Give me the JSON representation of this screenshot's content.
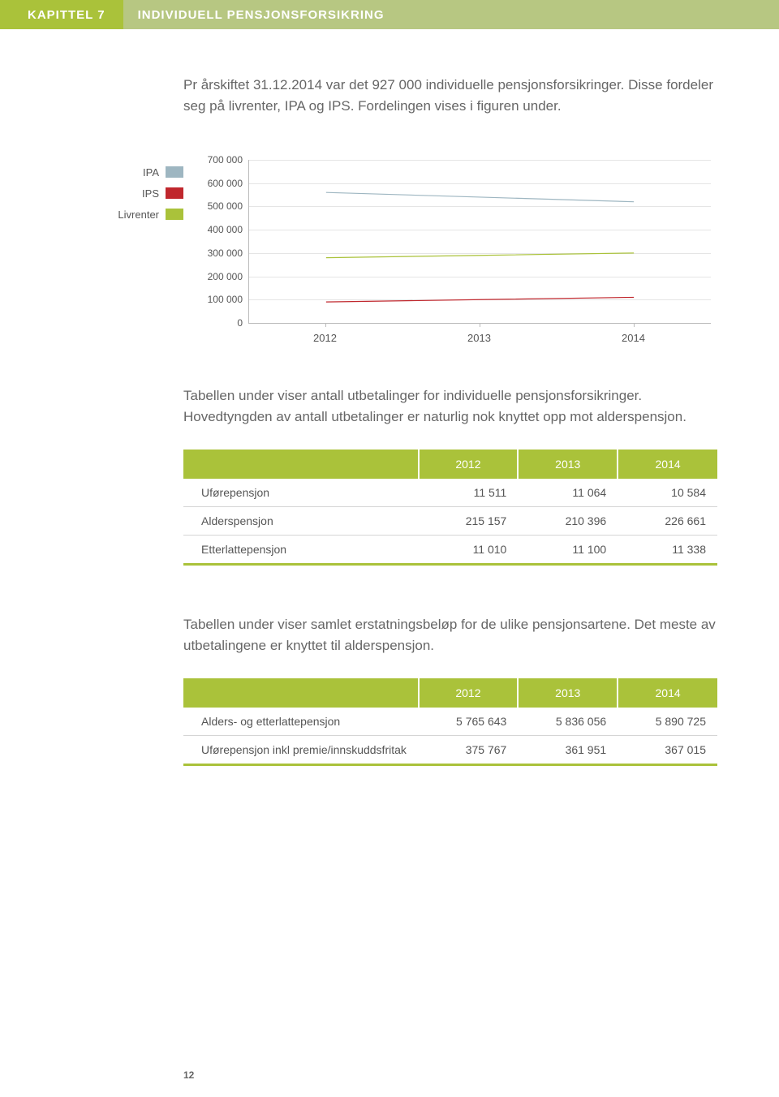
{
  "header": {
    "chapter": "KAPITTEL 7",
    "title": "INDIVIDUELL PENSJONSFORSIKRING"
  },
  "intro": {
    "p1": "Pr årskiftet 31.12.2014 var det 927 000 individuelle pensjonsforsikringer. Disse fordeler seg på livrenter, IPA og IPS. Fordelingen vises i figuren under."
  },
  "chart": {
    "type": "line",
    "ylim": [
      0,
      700000
    ],
    "ytick_step": 100000,
    "yticks": [
      "0",
      "100 000",
      "200 000",
      "300 000",
      "400 000",
      "500 000",
      "600 000",
      "700 000"
    ],
    "categories": [
      "2012",
      "2013",
      "2014"
    ],
    "series": [
      {
        "name": "IPA",
        "color": "#9eb6c1",
        "values": [
          560000,
          540000,
          520000
        ]
      },
      {
        "name": "IPS",
        "color": "#c0272d",
        "values": [
          90000,
          100000,
          110000
        ]
      },
      {
        "name": "Livrenter",
        "color": "#aac23a",
        "values": [
          280000,
          290000,
          300000
        ]
      }
    ],
    "grid_color": "#e5e5e5",
    "axis_color": "#bbbbbb",
    "background_color": "#ffffff"
  },
  "para2": "Tabellen under viser antall utbetalinger for individuelle pensjons­forsikringer. Hovedtyngden av antall utbetalinger er naturlig nok knyttet opp mot alderspensjon.",
  "table1": {
    "columns": [
      "",
      "2012",
      "2013",
      "2014"
    ],
    "rows": [
      [
        "Uførepensjon",
        "11 511",
        "11 064",
        "10 584"
      ],
      [
        "Alderspensjon",
        "215 157",
        "210 396",
        "226 661"
      ],
      [
        "Etterlattepensjon",
        "11 010",
        "11 100",
        "11 338"
      ]
    ]
  },
  "para3": "Tabellen under viser samlet erstatningsbeløp for de ulike pensjons­artene. Det meste av utbetalingene er knyttet til alderspensjon.",
  "table2": {
    "columns": [
      "",
      "2012",
      "2013",
      "2014"
    ],
    "rows": [
      [
        "Alders- og etterlattepensjon",
        "5 765 643",
        "5 836 056",
        "5 890 725"
      ],
      [
        "Uførepensjon inkl premie/innskuddsfritak",
        "375 767",
        "361 951",
        "367 015"
      ]
    ]
  },
  "page_number": "12",
  "colors": {
    "brand_green": "#aac23a",
    "header_light": "#b7c782"
  }
}
